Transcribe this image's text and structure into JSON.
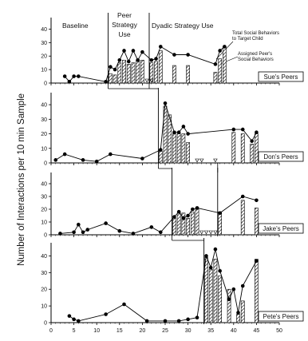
{
  "chart_data": {
    "type": "multiple-baseline line and bar chart",
    "ylabel": "Number of Interactions per 10 min Sample",
    "x_ticks": [
      0,
      5,
      10,
      15,
      20,
      25,
      30,
      35,
      40,
      45,
      50
    ],
    "xlim": [
      0,
      50
    ],
    "y_ticks": [
      0,
      10,
      20,
      30,
      40
    ],
    "ylim": [
      0,
      45
    ],
    "phase_labels": {
      "baseline": "Baseline",
      "peer": "Peer Strategy Use",
      "peer_lines": [
        "Peer",
        "Strategy",
        "Use"
      ],
      "dyadic": "Dyadic Strategy Use"
    },
    "legend": {
      "line_lines": [
        "Total Social Behaviors",
        "to Target Child"
      ],
      "bar_lines": [
        "Assigned Peer's",
        "Social Behaviors"
      ]
    },
    "panels": [
      {
        "name": "Sue's Peers",
        "total": [
          [
            3,
            5
          ],
          [
            4,
            1
          ],
          [
            5,
            5
          ],
          [
            6,
            5
          ],
          [
            12,
            1
          ],
          [
            13,
            12
          ],
          [
            14,
            10
          ],
          [
            15,
            17
          ],
          [
            16,
            24
          ],
          [
            17,
            16
          ],
          [
            18,
            24
          ],
          [
            19,
            17
          ],
          [
            20,
            23
          ],
          [
            22,
            17
          ],
          [
            23,
            18
          ],
          [
            24,
            27
          ],
          [
            27,
            21
          ],
          [
            30,
            21
          ],
          [
            36,
            14
          ],
          [
            37,
            24
          ],
          [
            38,
            27
          ]
        ],
        "bars": [
          [
            13,
            7
          ],
          [
            14,
            6
          ],
          [
            15,
            15
          ],
          [
            16,
            17
          ],
          [
            17,
            14
          ],
          [
            18,
            15
          ],
          [
            19,
            17
          ],
          [
            20,
            17
          ],
          [
            22,
            15
          ],
          [
            23,
            16
          ],
          [
            24,
            24
          ],
          [
            27,
            13
          ],
          [
            30,
            13
          ],
          [
            36,
            8
          ],
          [
            37,
            18
          ],
          [
            38,
            27
          ]
        ],
        "markers": [
          21,
          22
        ],
        "phase_lines": [
          12.5,
          21.5
        ]
      },
      {
        "name": "Don's Peers",
        "total": [
          [
            1,
            2
          ],
          [
            3,
            6
          ],
          [
            7,
            2
          ],
          [
            10,
            1
          ],
          [
            13,
            6
          ],
          [
            20,
            3
          ],
          [
            24,
            9
          ],
          [
            25,
            41
          ],
          [
            27,
            21
          ],
          [
            28,
            21
          ],
          [
            29,
            25
          ],
          [
            30,
            20
          ],
          [
            40,
            23
          ],
          [
            42,
            23
          ],
          [
            44,
            15
          ],
          [
            45,
            21
          ]
        ],
        "bars": [
          [
            24,
            8
          ],
          [
            25,
            39
          ],
          [
            26,
            33
          ],
          [
            27,
            20
          ],
          [
            28,
            20
          ],
          [
            29,
            20
          ],
          [
            30,
            14
          ],
          [
            40,
            21
          ],
          [
            42,
            20
          ],
          [
            44,
            13
          ],
          [
            45,
            20
          ]
        ],
        "markers": [
          32,
          33,
          36
        ],
        "phase_lines": [
          23.5
        ]
      },
      {
        "name": "Jake's Peers",
        "total": [
          [
            2,
            1
          ],
          [
            5,
            2
          ],
          [
            6,
            8
          ],
          [
            7,
            2
          ],
          [
            8,
            4
          ],
          [
            12,
            9
          ],
          [
            15,
            3
          ],
          [
            18,
            1
          ],
          [
            22,
            6
          ],
          [
            24,
            2
          ],
          [
            27,
            14
          ],
          [
            28,
            18
          ],
          [
            29,
            13
          ],
          [
            30,
            15
          ],
          [
            31,
            20
          ],
          [
            32,
            21
          ],
          [
            37,
            17
          ],
          [
            42,
            30
          ],
          [
            45,
            27
          ]
        ],
        "bars": [
          [
            27,
            13
          ],
          [
            28,
            17
          ],
          [
            29,
            17
          ],
          [
            30,
            13
          ],
          [
            31,
            18
          ],
          [
            32,
            20
          ],
          [
            37,
            18
          ],
          [
            42,
            27
          ],
          [
            45,
            21
          ]
        ],
        "markers": [
          33,
          34,
          35,
          36
        ],
        "phase_lines": [
          26.5,
          36.5
        ]
      },
      {
        "name": "Pete's Peers",
        "total": [
          [
            4,
            4
          ],
          [
            5,
            2
          ],
          [
            6,
            1
          ],
          [
            12,
            5
          ],
          [
            16,
            11
          ],
          [
            21,
            1
          ],
          [
            25,
            1
          ],
          [
            28,
            1
          ],
          [
            30,
            2
          ],
          [
            32,
            3
          ],
          [
            34,
            40
          ],
          [
            35,
            33
          ],
          [
            36,
            44
          ],
          [
            37,
            31
          ],
          [
            39,
            14
          ],
          [
            40,
            20
          ],
          [
            41,
            6
          ],
          [
            42,
            22
          ],
          [
            45,
            37
          ]
        ],
        "bars": [
          [
            34,
            39
          ],
          [
            35,
            32
          ],
          [
            36,
            38
          ],
          [
            37,
            28
          ],
          [
            39,
            20
          ],
          [
            41,
            5
          ],
          [
            42,
            13
          ],
          [
            45,
            38
          ]
        ],
        "markers": [],
        "phase_lines": [
          33.5
        ]
      }
    ]
  }
}
